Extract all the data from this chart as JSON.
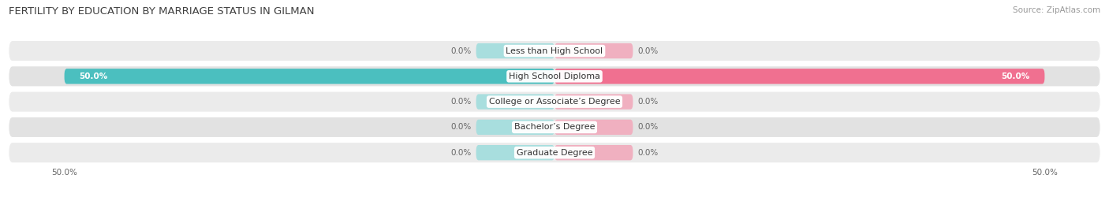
{
  "title": "FERTILITY BY EDUCATION BY MARRIAGE STATUS IN GILMAN",
  "source": "Source: ZipAtlas.com",
  "categories": [
    "Less than High School",
    "High School Diploma",
    "College or Associate’s Degree",
    "Bachelor’s Degree",
    "Graduate Degree"
  ],
  "married_values": [
    0.0,
    50.0,
    0.0,
    0.0,
    0.0
  ],
  "unmarried_values": [
    0.0,
    50.0,
    0.0,
    0.0,
    0.0
  ],
  "married_color": "#4BBFBF",
  "unmarried_color": "#F07090",
  "married_color_light": "#A8DEDE",
  "unmarried_color_light": "#F0B0C0",
  "row_bg_odd": "#EFEFEF",
  "row_bg_even": "#E5E5E5",
  "max_value": 50.0,
  "stub_size": 8.0,
  "title_fontsize": 9.5,
  "source_fontsize": 7.5,
  "label_fontsize": 7.5,
  "category_fontsize": 8.0,
  "bar_height": 0.6,
  "background_color": "#FFFFFF"
}
